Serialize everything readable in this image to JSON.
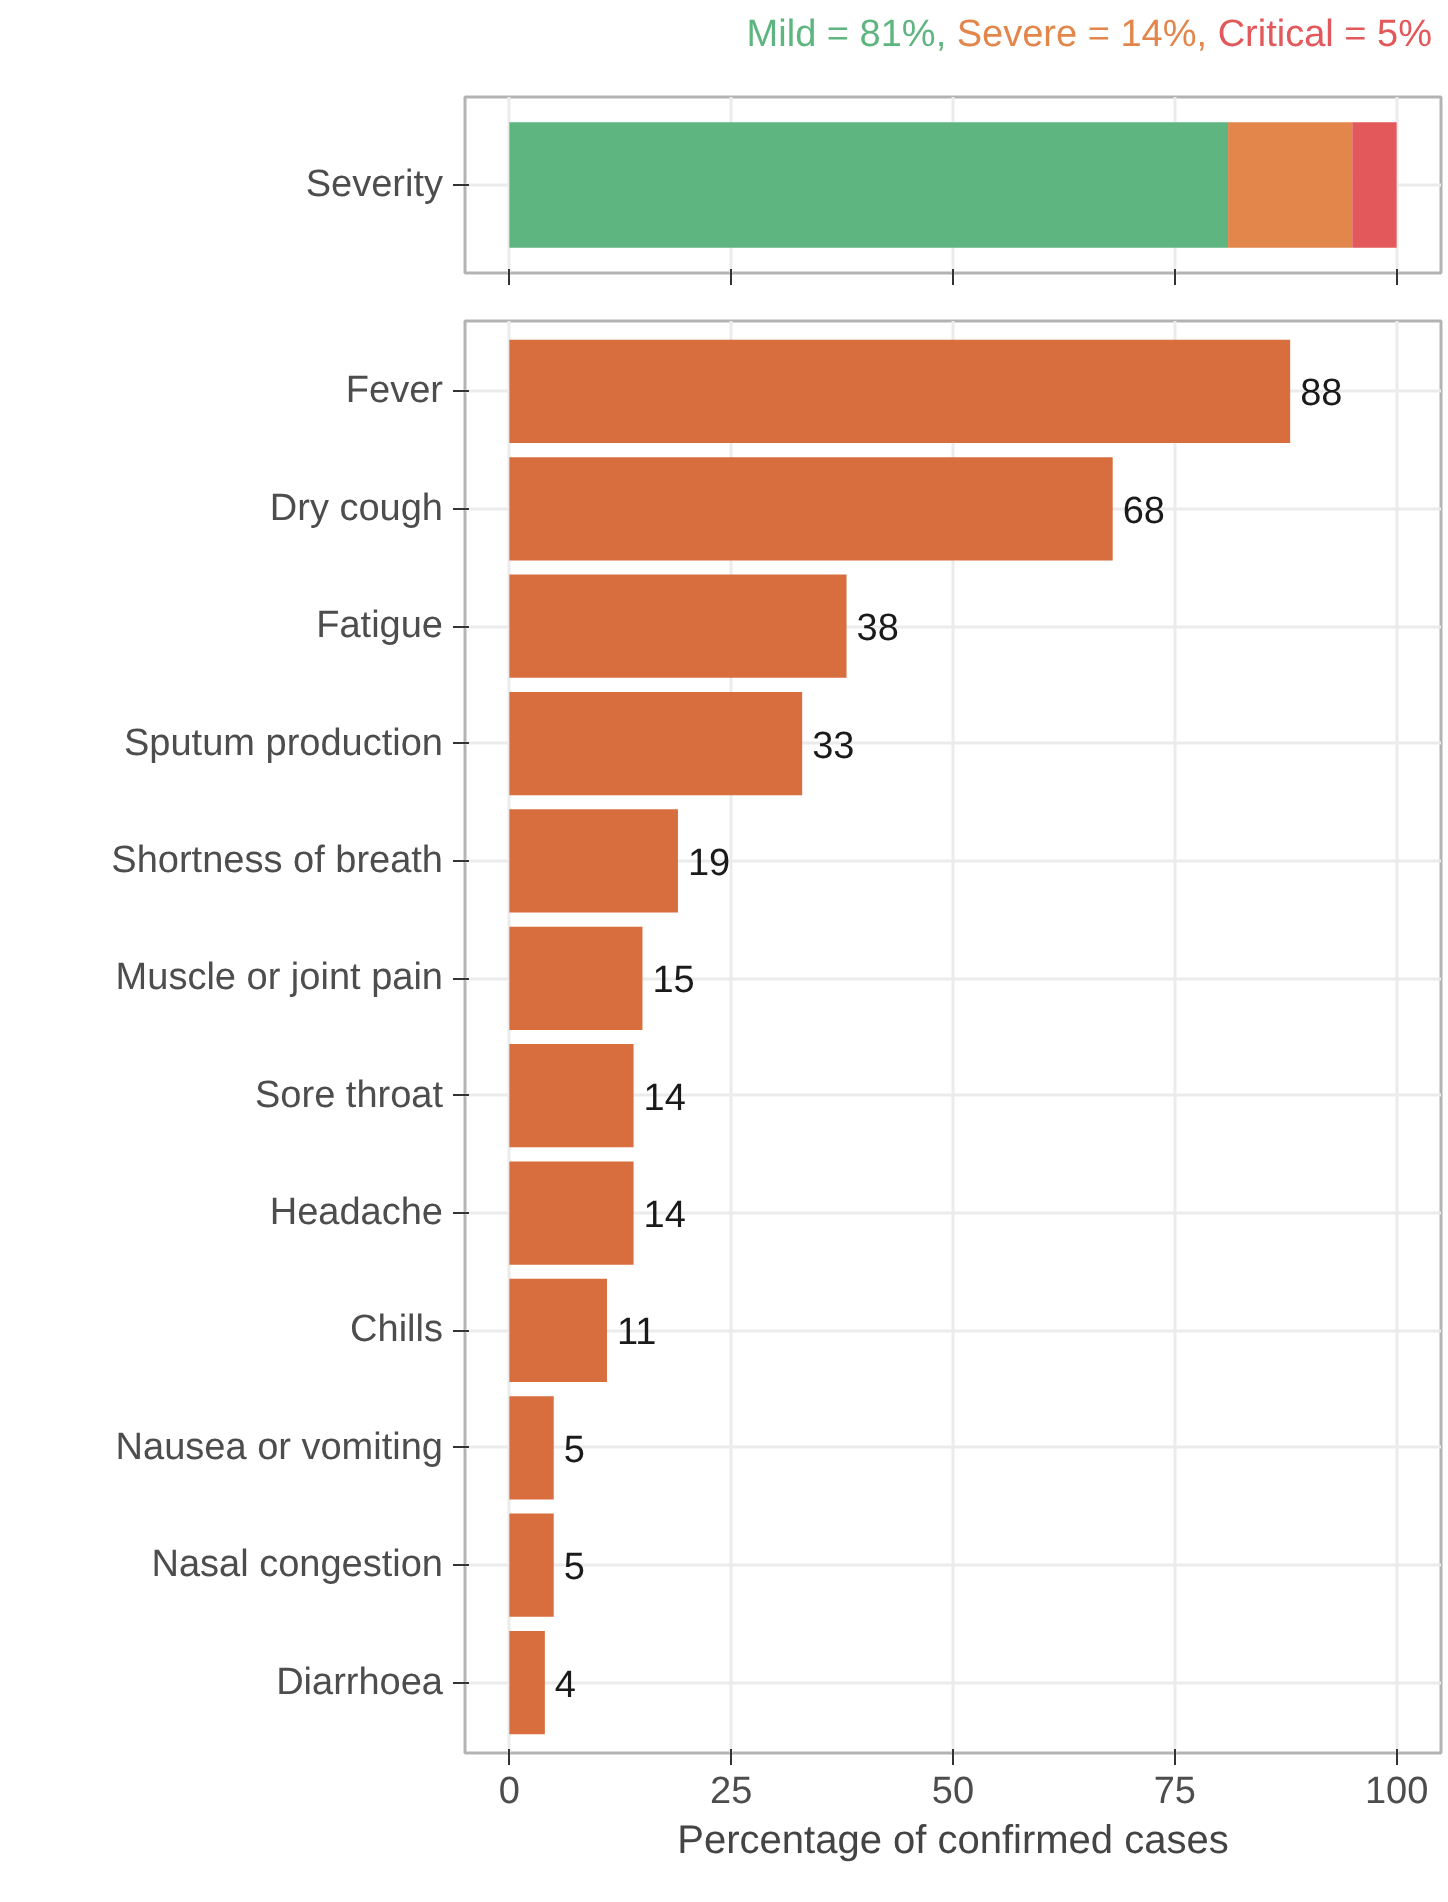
{
  "chart_data": [
    {
      "type": "bar",
      "orientation": "horizontal",
      "stacked": true,
      "categories": [
        "Severity"
      ],
      "xlim": [
        -5,
        105
      ],
      "xticks": [
        0,
        25,
        50,
        75,
        100
      ],
      "tick_labels": "y",
      "grid": true,
      "legend": "top right",
      "series": [
        {
          "name": "Mild = 81%,",
          "color": "#5fb57f",
          "values": [
            81
          ]
        },
        {
          "name": "Severe = 14%,",
          "color": "#e2864c",
          "values": [
            14
          ]
        },
        {
          "name": "Critical = 5%",
          "color": "#e2585b",
          "values": [
            5
          ]
        }
      ]
    },
    {
      "type": "bar",
      "orientation": "horizontal",
      "categories": [
        "Fever",
        "Dry cough",
        "Fatigue",
        "Sputum production",
        "Shortness of breath",
        "Muscle or joint pain",
        "Sore throat",
        "Headache",
        "Chills",
        "Nausea or vomiting",
        "Nasal congestion",
        "Diarrhoea"
      ],
      "values": [
        88,
        68,
        38,
        33,
        19,
        15,
        14,
        14,
        11,
        5,
        5,
        4
      ],
      "color": "#d86d3e",
      "data_labels": true,
      "xlim": [
        -5,
        105
      ],
      "xticks": [
        0,
        25,
        50,
        75,
        100
      ],
      "xlabel": "Percentage of confirmed cases",
      "grid": true
    }
  ]
}
